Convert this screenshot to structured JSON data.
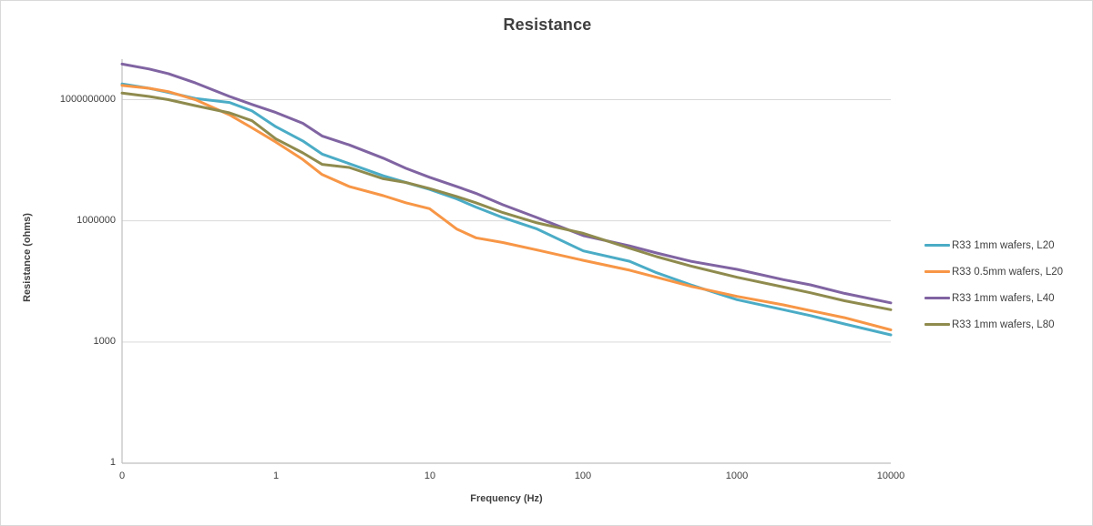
{
  "window": {
    "background": "#ffffff",
    "border_color": "#d9d9d9",
    "gridline_color": "#d9d9d9",
    "axis_line_color": "#bfbfbf",
    "text_color": "#404040"
  },
  "chart_data": {
    "type": "line",
    "title": "Resistance",
    "xlabel": "Frequency (Hz)",
    "ylabel": "Resistance (ohms)",
    "x_scale": "log",
    "y_scale": "log",
    "xlim": [
      0.1,
      10000
    ],
    "ylim": [
      1,
      10000000000
    ],
    "grid": "horizontal",
    "legend_position": "right",
    "x_tick_values": [
      0.1,
      1,
      10,
      100,
      1000,
      10000
    ],
    "x_tick_labels": [
      "0",
      "1",
      "10",
      "100",
      "1000",
      "10000"
    ],
    "y_tick_values": [
      1,
      1000,
      1000000,
      1000000000
    ],
    "y_tick_labels": [
      "1",
      "1000",
      "1000000",
      "1000000000"
    ],
    "x": [
      0.1,
      0.15,
      0.2,
      0.3,
      0.5,
      0.7,
      1,
      1.5,
      2,
      3,
      5,
      7,
      10,
      15,
      20,
      30,
      50,
      100,
      200,
      300,
      500,
      1000,
      2000,
      3000,
      5000,
      10000
    ],
    "series": [
      {
        "name": "R33 1mm wafers, L20",
        "color": "#4BACC6",
        "values": [
          2450000000,
          1910000000,
          1510000000,
          1070000000,
          850000000,
          525000000,
          214000000,
          95000000,
          45000000,
          26000000,
          13000000,
          8900000,
          6000000,
          3500000,
          2200000,
          1200000,
          630000,
          180000,
          100000,
          52000,
          26000,
          11200,
          6300,
          4500,
          2800,
          1500
        ]
      },
      {
        "name": "R33 0.5mm wafers, L20",
        "color": "#F79646",
        "values": [
          2240000000,
          1910000000,
          1580000000,
          1000000000,
          420000000,
          200000000,
          89000000,
          33000000,
          14000000,
          7100000,
          4200000,
          2800000,
          2000000,
          630000,
          380000,
          290000,
          190000,
          105000,
          60000,
          40000,
          24000,
          13500,
          8300,
          6000,
          4000,
          2000
        ]
      },
      {
        "name": "R33 1mm wafers, L40",
        "color": "#8064A2",
        "values": [
          7600000000,
          5750000000,
          4400000000,
          2600000000,
          1200000000,
          760000000,
          480000000,
          260000000,
          126000000,
          76000000,
          35500000,
          20000000,
          12000000,
          7100000,
          4800000,
          2500000,
          1200000,
          430000,
          240000,
          160000,
          100000,
          63000,
          35000,
          26000,
          16000,
          9300
        ]
      },
      {
        "name": "R33 1mm wafers, L80",
        "color": "#8F8B4E",
        "values": [
          1450000000,
          1200000000,
          1000000000,
          710000000,
          470000000,
          300000000,
          107000000,
          48000000,
          25000000,
          21000000,
          11000000,
          8900000,
          6300000,
          4000000,
          2800000,
          1600000,
          890000,
          490000,
          210000,
          130000,
          76000,
          40000,
          23000,
          16600,
          10500,
          6300
        ]
      }
    ]
  }
}
